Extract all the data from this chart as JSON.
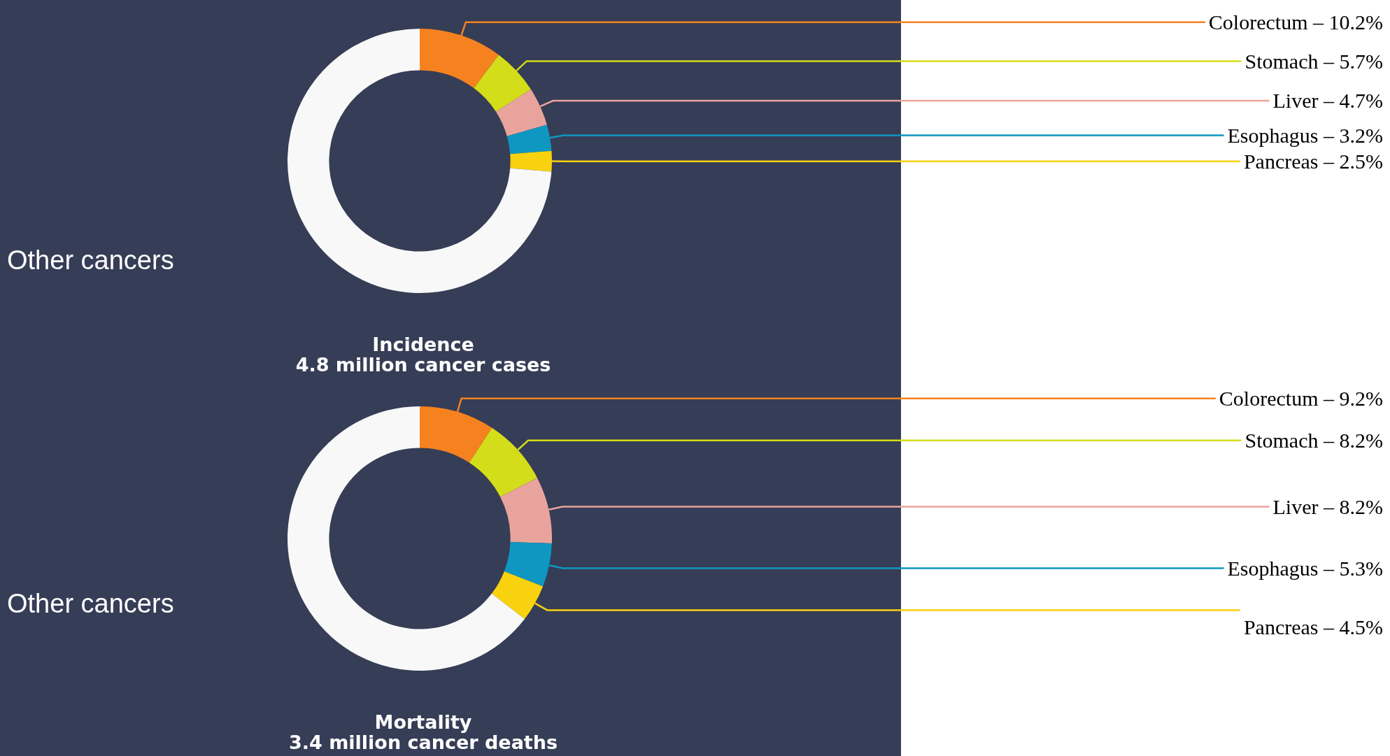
{
  "chart_data": [
    {
      "type": "donut",
      "title": "Incidence",
      "subtitle": "4.8 million cancer cases",
      "categories": [
        "Colorectum",
        "Stomach",
        "Liver",
        "Esophagus",
        "Pancreas",
        "Other cancers"
      ],
      "values": [
        10.2,
        5.7,
        4.7,
        3.2,
        2.5,
        73.7
      ],
      "value_labels": [
        "10.2%",
        "5.7%",
        "4.7%",
        "3.2%",
        "2.5%",
        null
      ],
      "colors": [
        "#f5821f",
        "#d4dd19",
        "#e8a49c",
        "#0e97c1",
        "#f8d20e",
        "#f8f8f8"
      ],
      "legend": false
    },
    {
      "type": "donut",
      "title": "Mortality",
      "subtitle": "3.4 million cancer deaths",
      "categories": [
        "Colorectum",
        "Stomach",
        "Liver",
        "Esophagus",
        "Pancreas",
        "Other cancers"
      ],
      "values": [
        9.2,
        8.2,
        8.2,
        5.3,
        4.5,
        64.6
      ],
      "value_labels": [
        "9.2%",
        "8.2%",
        "8.2%",
        "5.3%",
        "4.5%",
        null
      ],
      "colors": [
        "#f5821f",
        "#d4dd19",
        "#e8a49c",
        "#0e97c1",
        "#f8d20e",
        "#f8f8f8"
      ],
      "legend": false
    }
  ]
}
